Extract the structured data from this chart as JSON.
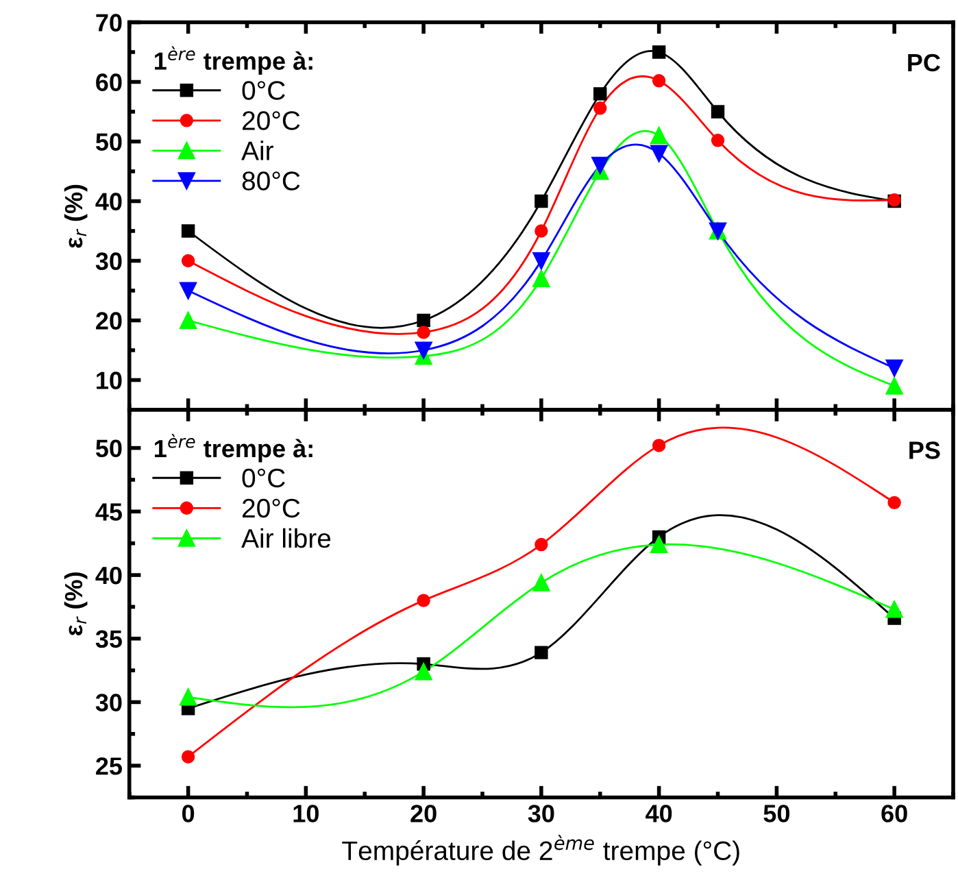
{
  "chart_data": [
    {
      "type": "line",
      "x": [
        0,
        20,
        30,
        35,
        40,
        45,
        60
      ],
      "xlim": [
        -5,
        65
      ],
      "xticks": [
        0,
        10,
        20,
        30,
        40,
        50,
        60
      ],
      "ylim": [
        5,
        70
      ],
      "yticks": [
        10,
        20,
        30,
        40,
        50,
        60,
        70
      ],
      "ylabel": "ε$_{r}$ (%)",
      "legend_title": "1$^{ère}$ trempe à:",
      "legend": "top left",
      "grid": false,
      "tick_labels": "y",
      "annotations": [
        "PC"
      ],
      "series": [
        {
          "name": "0°C",
          "color": "#000000",
          "marker": "square",
          "values": [
            35,
            20,
            40,
            58,
            65,
            55,
            40
          ]
        },
        {
          "name": "20°C",
          "color": "#ff0000",
          "marker": "circle",
          "values": [
            30,
            18,
            35,
            55.6,
            60.2,
            50.2,
            40.2
          ]
        },
        {
          "name": "Air",
          "color": "#00ff00",
          "marker": "triangle",
          "values": [
            20,
            14,
            27,
            45,
            51,
            35,
            9
          ]
        },
        {
          "name": "80°C",
          "color": "#0000ff",
          "marker": "triangle_down",
          "values": [
            25,
            15,
            30,
            46,
            48,
            35,
            12
          ]
        }
      ]
    },
    {
      "type": "line",
      "x": [
        0,
        20,
        30,
        40,
        60
      ],
      "xlim": [
        -5,
        65
      ],
      "xticks": [
        0,
        10,
        20,
        30,
        40,
        50,
        60
      ],
      "ylim": [
        22.5,
        53
      ],
      "yticks": [
        25,
        30,
        35,
        40,
        45,
        50
      ],
      "ylabel": "ε$_{r}$ (%)",
      "xlabel": "Température de 2$^{ème}$ trempe (°C)",
      "legend_title": "1$^{ère}$ trempe à:",
      "legend": "top left",
      "grid": false,
      "annotations": [
        "PS"
      ],
      "series": [
        {
          "name": "0°C",
          "color": "#000000",
          "marker": "square",
          "values": [
            29.5,
            33,
            33.9,
            43,
            36.6
          ]
        },
        {
          "name": "20°C",
          "color": "#ff0000",
          "marker": "circle",
          "values": [
            25.7,
            38,
            42.4,
            50.2,
            45.7
          ]
        },
        {
          "name": "Air libre",
          "color": "#00ff00",
          "marker": "triangle",
          "values": [
            30.4,
            32.4,
            39.4,
            42.4,
            37.3
          ]
        }
      ]
    }
  ]
}
